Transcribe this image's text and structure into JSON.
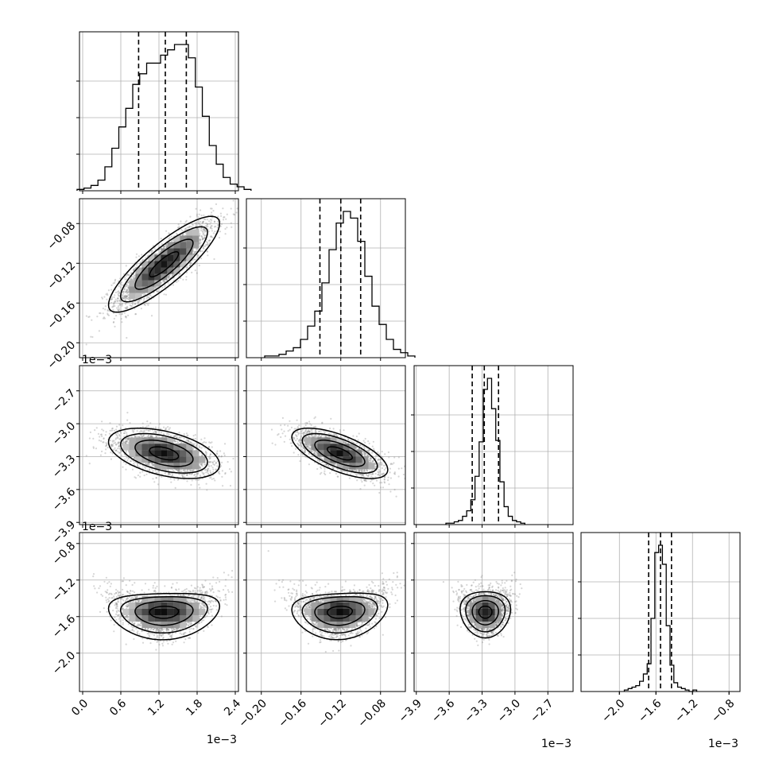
{
  "chart_data": {
    "type": "corner",
    "parameters": 4,
    "params": [
      {
        "range": [
          -0.05,
          2.45
        ],
        "ticks": [
          0.0,
          0.6,
          1.2,
          1.8,
          2.4
        ],
        "tick_labels": [
          "0.0",
          "0.6",
          "1.2",
          "1.8",
          "2.4"
        ],
        "offset_text": "1e−3",
        "quantiles": [
          0.88,
          1.3,
          1.63
        ],
        "center": 1.28,
        "spread": 0.38
      },
      {
        "range": [
          -0.215,
          -0.055
        ],
        "ticks": [
          -0.2,
          -0.16,
          -0.12,
          -0.08
        ],
        "tick_labels": [
          "−0.20",
          "−0.16",
          "−0.12",
          "−0.08"
        ],
        "offset_text": "1e−3",
        "quantiles": [
          -0.141,
          -0.12,
          -0.1
        ],
        "center": -0.121,
        "spread": 0.021
      },
      {
        "range": [
          -3.92,
          -2.47
        ],
        "ticks": [
          -3.9,
          -3.6,
          -3.3,
          -3.0,
          -2.7
        ],
        "tick_labels": [
          "−3.9",
          "−3.6",
          "−3.3",
          "−3.0",
          "−2.7"
        ],
        "offset_text": "1e−3",
        "quantiles": [
          -3.39,
          -3.28,
          -3.15
        ],
        "center": -3.27,
        "spread": 0.1
      },
      {
        "range": [
          -2.42,
          -0.68
        ],
        "ticks": [
          -2.0,
          -1.6,
          -1.2,
          -0.8
        ],
        "tick_labels": [
          "−2.0",
          "−1.6",
          "−1.2",
          "−0.8"
        ],
        "offset_text": "1e−3",
        "quantiles": [
          -1.68,
          -1.55,
          -1.43
        ],
        "center": -1.55,
        "spread": 0.11
      }
    ],
    "histograms": [
      {
        "param": 0,
        "counts": [
          1,
          2,
          4,
          8,
          18,
          32,
          48,
          62,
          80,
          88,
          96,
          96,
          102,
          106,
          110,
          110,
          100,
          78,
          56,
          34,
          20,
          10,
          5,
          3,
          1
        ]
      },
      {
        "param": 1,
        "counts": [
          1,
          1,
          2,
          4,
          6,
          11,
          19,
          28,
          45,
          65,
          81,
          88,
          84,
          70,
          49,
          31,
          20,
          11,
          5,
          3,
          1
        ]
      },
      {
        "param": 2,
        "counts": [
          1,
          1,
          2,
          3,
          6,
          10,
          18,
          35,
          60,
          98,
          106,
          84,
          61,
          31,
          13,
          6,
          3,
          2,
          1
        ]
      },
      {
        "param": 3,
        "counts": [
          1,
          2,
          3,
          4,
          7,
          12,
          19,
          50,
          95,
          100,
          87,
          45,
          18,
          6,
          3,
          2,
          1,
          0,
          1
        ]
      }
    ],
    "correlations": {
      "1-0": 0.85,
      "2-0": -0.45,
      "2-1": -0.65,
      "3-0": 0.05,
      "3-1": 0.1,
      "3-2": 0.0
    },
    "grid": true
  },
  "corner_exponent_labels": [
    {
      "text": "1e−3"
    },
    {
      "text": "1e−3"
    },
    {
      "text": "1e−3"
    },
    {
      "text": "1e−3"
    },
    {
      "text": "1e−3"
    },
    {
      "text": "1e−3"
    }
  ]
}
